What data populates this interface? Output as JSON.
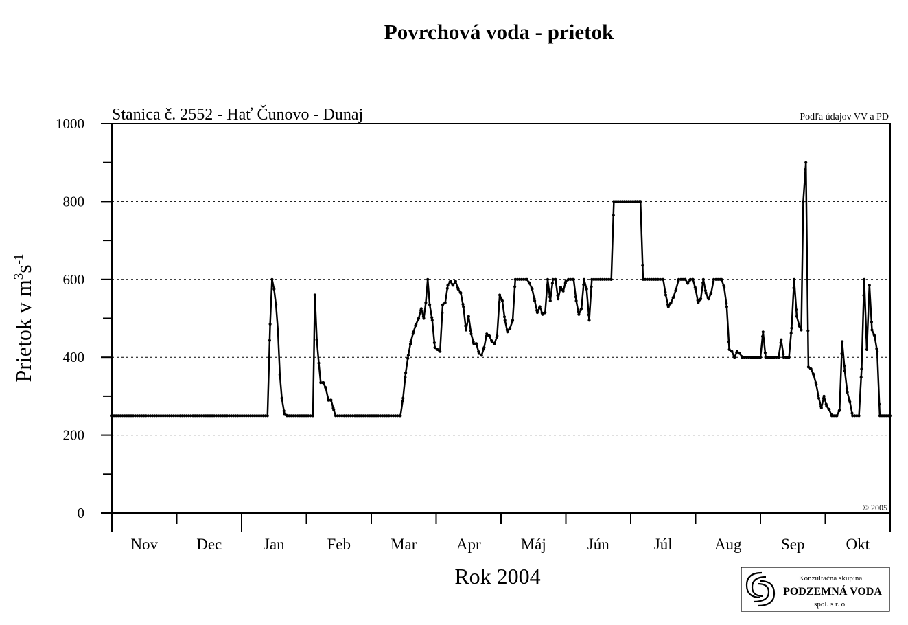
{
  "chart_data": {
    "type": "line",
    "title": "Povrchová voda - prietok",
    "subtitle": "Stanica č. 2552  - Hať Čunovo - Dunaj",
    "source_note": "Podľa údajov VV a PD",
    "copyright": "© 2005",
    "xlabel": "Rok 2004",
    "ylabel_main": "Prietok  v  m",
    "ylabel_sup1": "3",
    "ylabel_mid": "s",
    "ylabel_sup2": "-1",
    "ylim": [
      0,
      1000
    ],
    "yticks": [
      "0",
      "200",
      "400",
      "600",
      "800",
      "1000"
    ],
    "ytick_values": [
      0,
      200,
      400,
      600,
      800,
      1000
    ],
    "grid": "dashed at 200, 400, 600, 800",
    "months": [
      "Nov",
      "Dec",
      "Jan",
      "Feb",
      "Mar",
      "Apr",
      "Máj",
      "Jún",
      "Júl",
      "Aug",
      "Sep",
      "Okt"
    ],
    "x_unit": "months from start of Nov",
    "series": [
      {
        "points": [
          [
            0,
            250
          ],
          [
            2.4,
            250
          ],
          [
            2.44,
            485
          ],
          [
            2.47,
            600
          ],
          [
            2.5,
            575
          ],
          [
            2.53,
            535
          ],
          [
            2.56,
            470
          ],
          [
            2.59,
            355
          ],
          [
            2.62,
            295
          ],
          [
            2.66,
            255
          ],
          [
            2.7,
            250
          ],
          [
            3.1,
            250
          ],
          [
            3.13,
            560
          ],
          [
            3.16,
            445
          ],
          [
            3.19,
            385
          ],
          [
            3.22,
            335
          ],
          [
            3.26,
            335
          ],
          [
            3.3,
            320
          ],
          [
            3.34,
            290
          ],
          [
            3.38,
            290
          ],
          [
            3.42,
            265
          ],
          [
            3.45,
            250
          ],
          [
            4.45,
            250
          ],
          [
            4.49,
            295
          ],
          [
            4.53,
            360
          ],
          [
            4.57,
            405
          ],
          [
            4.61,
            440
          ],
          [
            4.65,
            465
          ],
          [
            4.69,
            485
          ],
          [
            4.73,
            500
          ],
          [
            4.77,
            525
          ],
          [
            4.81,
            500
          ],
          [
            4.84,
            540
          ],
          [
            4.87,
            600
          ],
          [
            4.9,
            535
          ],
          [
            4.94,
            495
          ],
          [
            4.98,
            425
          ],
          [
            5.02,
            420
          ],
          [
            5.06,
            415
          ],
          [
            5.1,
            535
          ],
          [
            5.14,
            540
          ],
          [
            5.18,
            585
          ],
          [
            5.22,
            595
          ],
          [
            5.26,
            585
          ],
          [
            5.3,
            595
          ],
          [
            5.34,
            575
          ],
          [
            5.38,
            565
          ],
          [
            5.42,
            530
          ],
          [
            5.46,
            470
          ],
          [
            5.5,
            505
          ],
          [
            5.54,
            460
          ],
          [
            5.58,
            435
          ],
          [
            5.62,
            435
          ],
          [
            5.66,
            410
          ],
          [
            5.7,
            405
          ],
          [
            5.74,
            425
          ],
          [
            5.78,
            460
          ],
          [
            5.82,
            455
          ],
          [
            5.86,
            440
          ],
          [
            5.9,
            435
          ],
          [
            5.94,
            455
          ],
          [
            5.98,
            560
          ],
          [
            6.02,
            545
          ],
          [
            6.06,
            495
          ],
          [
            6.1,
            465
          ],
          [
            6.14,
            475
          ],
          [
            6.18,
            495
          ],
          [
            6.22,
            600
          ],
          [
            6.4,
            600
          ],
          [
            6.44,
            590
          ],
          [
            6.48,
            575
          ],
          [
            6.52,
            545
          ],
          [
            6.56,
            515
          ],
          [
            6.6,
            530
          ],
          [
            6.64,
            510
          ],
          [
            6.68,
            515
          ],
          [
            6.72,
            600
          ],
          [
            6.76,
            545
          ],
          [
            6.8,
            600
          ],
          [
            6.84,
            600
          ],
          [
            6.88,
            550
          ],
          [
            6.92,
            580
          ],
          [
            6.96,
            570
          ],
          [
            7.0,
            595
          ],
          [
            7.04,
            600
          ],
          [
            7.12,
            600
          ],
          [
            7.16,
            545
          ],
          [
            7.2,
            510
          ],
          [
            7.24,
            525
          ],
          [
            7.28,
            600
          ],
          [
            7.32,
            575
          ],
          [
            7.36,
            495
          ],
          [
            7.4,
            600
          ],
          [
            7.7,
            600
          ],
          [
            7.74,
            800
          ],
          [
            8.15,
            800
          ],
          [
            8.19,
            600
          ],
          [
            8.5,
            600
          ],
          [
            8.54,
            560
          ],
          [
            8.58,
            530
          ],
          [
            8.62,
            540
          ],
          [
            8.66,
            555
          ],
          [
            8.7,
            575
          ],
          [
            8.74,
            600
          ],
          [
            8.84,
            600
          ],
          [
            8.88,
            590
          ],
          [
            8.92,
            600
          ],
          [
            8.96,
            600
          ],
          [
            9.0,
            575
          ],
          [
            9.04,
            540
          ],
          [
            9.08,
            550
          ],
          [
            9.12,
            600
          ],
          [
            9.16,
            565
          ],
          [
            9.2,
            550
          ],
          [
            9.24,
            565
          ],
          [
            9.28,
            600
          ],
          [
            9.4,
            600
          ],
          [
            9.44,
            580
          ],
          [
            9.48,
            530
          ],
          [
            9.52,
            420
          ],
          [
            9.56,
            415
          ],
          [
            9.6,
            400
          ],
          [
            9.64,
            415
          ],
          [
            9.68,
            410
          ],
          [
            9.72,
            400
          ],
          [
            10.0,
            400
          ],
          [
            10.04,
            465
          ],
          [
            10.08,
            400
          ],
          [
            10.28,
            400
          ],
          [
            10.32,
            445
          ],
          [
            10.36,
            400
          ],
          [
            10.44,
            400
          ],
          [
            10.48,
            475
          ],
          [
            10.52,
            600
          ],
          [
            10.56,
            505
          ],
          [
            10.6,
            480
          ],
          [
            10.63,
            470
          ],
          [
            10.66,
            800
          ],
          [
            10.7,
            900
          ],
          [
            10.74,
            375
          ],
          [
            10.78,
            370
          ],
          [
            10.82,
            355
          ],
          [
            10.86,
            330
          ],
          [
            10.9,
            295
          ],
          [
            10.94,
            270
          ],
          [
            10.98,
            300
          ],
          [
            11.02,
            275
          ],
          [
            11.06,
            265
          ],
          [
            11.1,
            250
          ],
          [
            11.18,
            250
          ],
          [
            11.22,
            265
          ],
          [
            11.26,
            440
          ],
          [
            11.3,
            365
          ],
          [
            11.34,
            310
          ],
          [
            11.38,
            285
          ],
          [
            11.42,
            250
          ],
          [
            11.52,
            250
          ],
          [
            11.56,
            370
          ],
          [
            11.6,
            600
          ],
          [
            11.64,
            420
          ],
          [
            11.68,
            585
          ],
          [
            11.72,
            470
          ],
          [
            11.76,
            455
          ],
          [
            11.8,
            415
          ],
          [
            11.84,
            250
          ],
          [
            12.0,
            250
          ]
        ]
      }
    ]
  },
  "logo": {
    "line1": "Konzultačná skupina",
    "line2": "PODZEMNÁ VODA",
    "line3": "spol. s r. o."
  }
}
